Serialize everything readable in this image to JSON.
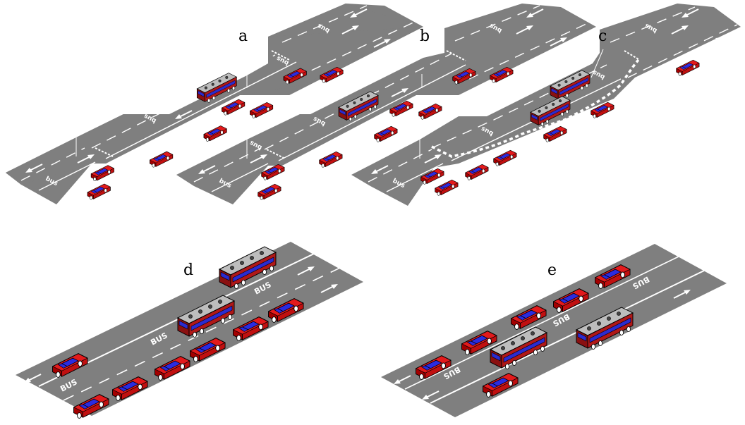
{
  "panels": [
    {
      "id": "a",
      "label": "a"
    },
    {
      "id": "b",
      "label": "b"
    },
    {
      "id": "c",
      "label": "c"
    },
    {
      "id": "d",
      "label": "d"
    },
    {
      "id": "e",
      "label": "e"
    }
  ],
  "road_marking_text": "BUS",
  "road_marking_text_small": "bus",
  "colors": {
    "road": "#7f7f7f",
    "road_dark": "#6a6a6a",
    "marking": "#ffffff",
    "car_body": "#e31a1c",
    "car_dark": "#a40000",
    "car_window": "#2b2be0",
    "bus_body": "#b01818",
    "bus_roof": "#bdbdbd",
    "bus_window": "#2b2bd0"
  },
  "icons": [
    "car-icon",
    "bus-icon",
    "arrow-icon"
  ]
}
